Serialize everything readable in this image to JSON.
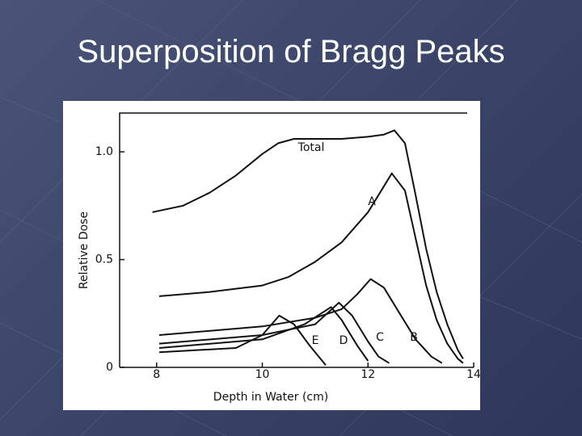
{
  "title": "Superposition of Bragg Peaks",
  "chart_data": {
    "type": "line",
    "x_label": "Depth in Water (cm)",
    "y_label": "Relative Dose",
    "xlim": [
      7.3,
      14
    ],
    "ylim": [
      0,
      1.18
    ],
    "xticks": [
      8,
      10,
      12,
      14
    ],
    "yticks": [
      0,
      0.5,
      {
        "value": 1,
        "label": "1.0"
      }
    ],
    "color": "#111111",
    "series": [
      {
        "name": "Total",
        "x": [
          7.92,
          8.5,
          9,
          9.5,
          10,
          10.3,
          10.6,
          11,
          11.5,
          12,
          12.3,
          12.5,
          12.7,
          12.9,
          13.1,
          13.3,
          13.5,
          13.7,
          13.8
        ],
        "values": [
          0.72,
          0.75,
          0.81,
          0.89,
          0.99,
          1.04,
          1.06,
          1.06,
          1.06,
          1.07,
          1.08,
          1.1,
          1.04,
          0.8,
          0.55,
          0.35,
          0.2,
          0.08,
          0.04
        ]
      },
      {
        "name": "A",
        "x": [
          8.05,
          9,
          10,
          10.5,
          11,
          11.5,
          12,
          12.3,
          12.45,
          12.7,
          12.9,
          13.1,
          13.3,
          13.5,
          13.7,
          13.8
        ],
        "values": [
          0.33,
          0.35,
          0.38,
          0.42,
          0.49,
          0.58,
          0.72,
          0.84,
          0.9,
          0.82,
          0.6,
          0.38,
          0.22,
          0.11,
          0.04,
          0.02
        ]
      },
      {
        "name": "B",
        "x": [
          8.05,
          10,
          11,
          11.5,
          11.8,
          12.05,
          12.3,
          12.6,
          12.9,
          13.2,
          13.4
        ],
        "values": [
          0.15,
          0.19,
          0.23,
          0.27,
          0.34,
          0.41,
          0.37,
          0.25,
          0.13,
          0.05,
          0.02
        ]
      },
      {
        "name": "C",
        "x": [
          8.05,
          10,
          11,
          11.45,
          11.7,
          12,
          12.2,
          12.4
        ],
        "values": [
          0.11,
          0.15,
          0.2,
          0.3,
          0.24,
          0.12,
          0.05,
          0.02
        ]
      },
      {
        "name": "D",
        "x": [
          8.05,
          10,
          10.8,
          11.3,
          11.5,
          11.8,
          12
        ],
        "values": [
          0.09,
          0.13,
          0.2,
          0.28,
          0.22,
          0.1,
          0.03
        ]
      },
      {
        "name": "E",
        "x": [
          8.05,
          9.5,
          10,
          10.32,
          10.6,
          10.9,
          11.1,
          11.2
        ],
        "values": [
          0.07,
          0.09,
          0.15,
          0.24,
          0.2,
          0.1,
          0.04,
          0.01
        ]
      }
    ]
  }
}
